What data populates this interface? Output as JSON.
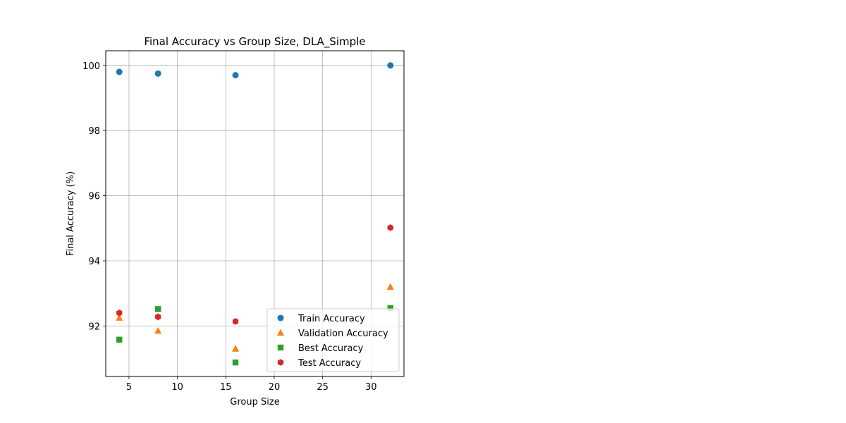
{
  "chart_data": {
    "type": "scatter",
    "title": "Final Accuracy vs Group Size, DLA_Simple",
    "xlabel": "Group Size",
    "ylabel": "Final Accuracy (%)",
    "xlim": [
      2.6,
      33.4
    ],
    "ylim": [
      90.45,
      100.45
    ],
    "xticks": [
      5,
      10,
      15,
      20,
      25,
      30
    ],
    "yticks": [
      92,
      94,
      96,
      98,
      100
    ],
    "grid": true,
    "legend_position": "lower right",
    "series": [
      {
        "name": "Train Accuracy",
        "marker": "circle",
        "color": "#1f77b4",
        "x": [
          4,
          8,
          16,
          32
        ],
        "y": [
          99.8,
          99.75,
          99.7,
          100.0
        ]
      },
      {
        "name": "Validation Accuracy",
        "marker": "triangle",
        "color": "#ff7f0e",
        "x": [
          4,
          8,
          16,
          32
        ],
        "y": [
          92.25,
          91.85,
          91.3,
          93.2
        ]
      },
      {
        "name": "Best Accuracy",
        "marker": "square",
        "color": "#2ca02c",
        "x": [
          4,
          8,
          16,
          32
        ],
        "y": [
          91.58,
          92.52,
          90.88,
          92.55
        ]
      },
      {
        "name": "Test Accuracy",
        "marker": "hexagon",
        "color": "#d62728",
        "x": [
          4,
          8,
          16,
          32
        ],
        "y": [
          92.4,
          92.28,
          92.14,
          95.02
        ]
      }
    ]
  }
}
